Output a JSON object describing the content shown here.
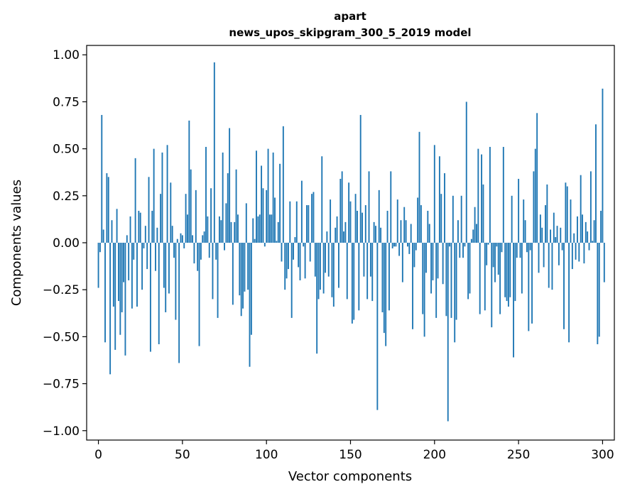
{
  "chart_data": {
    "type": "bar",
    "title": "apart",
    "subtitle": "news_upos_skipgram_300_5_2019 model",
    "xlabel": "Vector components",
    "ylabel": "Components values",
    "xlim": [
      -7,
      307
    ],
    "ylim": [
      -1.05,
      1.05
    ],
    "xticks": [
      0,
      50,
      100,
      150,
      200,
      250,
      300
    ],
    "yticks": [
      1.0,
      0.75,
      0.5,
      0.25,
      0.0,
      -0.25,
      -0.5,
      -0.75,
      -1.0
    ],
    "ytick_labels": [
      "1.00",
      "0.75",
      "0.50",
      "0.25",
      "0.00",
      "−0.25",
      "−0.50",
      "−0.75",
      "−1.00"
    ],
    "grid": false,
    "color": "#1f77b4",
    "values": [
      -0.24,
      -0.05,
      0.68,
      0.07,
      -0.53,
      0.37,
      0.35,
      -0.7,
      0.12,
      -0.34,
      -0.57,
      0.18,
      -0.31,
      -0.49,
      -0.37,
      -0.21,
      -0.6,
      0.04,
      -0.2,
      0.14,
      -0.35,
      -0.09,
      0.45,
      -0.34,
      0.17,
      0.16,
      -0.25,
      -0.03,
      0.09,
      -0.14,
      0.35,
      -0.58,
      0.17,
      0.5,
      -0.15,
      0.08,
      -0.54,
      0.26,
      0.48,
      -0.24,
      -0.37,
      0.52,
      -0.27,
      0.32,
      0.09,
      -0.08,
      -0.41,
      0.02,
      -0.64,
      0.05,
      0.04,
      -0.03,
      0.26,
      0.15,
      0.65,
      0.39,
      0.04,
      -0.11,
      0.28,
      -0.15,
      -0.55,
      -0.09,
      0.04,
      0.06,
      0.51,
      0.14,
      -0.08,
      0.29,
      -0.3,
      0.96,
      -0.09,
      -0.4,
      0.14,
      0.12,
      0.48,
      -0.04,
      0.21,
      0.37,
      0.61,
      0.11,
      -0.33,
      0.11,
      0.39,
      0.15,
      -0.28,
      -0.39,
      -0.35,
      -0.26,
      0.21,
      -0.25,
      -0.66,
      -0.49,
      0.13,
      0.02,
      0.49,
      0.14,
      0.15,
      0.41,
      0.29,
      -0.02,
      0.28,
      0.5,
      0.15,
      0.15,
      0.48,
      0.24,
      0.01,
      0.11,
      0.42,
      -0.1,
      0.62,
      -0.25,
      -0.19,
      -0.14,
      0.22,
      -0.4,
      -0.09,
      0.03,
      0.22,
      -0.13,
      -0.2,
      0.33,
      -0.02,
      -0.19,
      0.2,
      0.2,
      -0.1,
      0.26,
      0.27,
      -0.18,
      -0.59,
      -0.3,
      -0.25,
      0.46,
      -0.27,
      -0.16,
      0.06,
      -0.18,
      0.23,
      -0.29,
      -0.34,
      0.08,
      0.14,
      -0.24,
      0.34,
      0.38,
      0.06,
      0.11,
      -0.3,
      0.32,
      0.22,
      -0.43,
      -0.41,
      0.26,
      0.17,
      -0.36,
      0.68,
      0.16,
      -0.18,
      0.2,
      -0.3,
      0.38,
      -0.18,
      -0.31,
      0.11,
      0.09,
      -0.89,
      0.28,
      0.08,
      -0.37,
      -0.48,
      -0.55,
      0.17,
      -0.36,
      0.38,
      -0.03,
      -0.02,
      -0.02,
      0.23,
      -0.07,
      0.12,
      -0.21,
      0.19,
      0.12,
      -0.02,
      -0.06,
      0.1,
      -0.46,
      -0.13,
      -0.04,
      0.24,
      0.59,
      0.2,
      -0.38,
      -0.5,
      -0.16,
      0.17,
      0.1,
      -0.27,
      -0.2,
      0.52,
      -0.4,
      -0.19,
      0.46,
      0.26,
      -0.22,
      0.37,
      -0.39,
      -0.95,
      -0.02,
      -0.4,
      0.25,
      -0.53,
      -0.41,
      0.12,
      -0.08,
      0.25,
      -0.08,
      -0.02,
      0.75,
      -0.3,
      -0.27,
      0.02,
      0.07,
      0.19,
      0.1,
      0.5,
      -0.38,
      0.47,
      0.31,
      -0.36,
      -0.12,
      -0.01,
      0.51,
      -0.45,
      -0.13,
      -0.21,
      -0.02,
      -0.17,
      -0.38,
      -0.05,
      0.51,
      -0.29,
      -0.31,
      -0.34,
      -0.29,
      0.25,
      -0.61,
      -0.31,
      -0.08,
      0.34,
      -0.08,
      -0.27,
      0.23,
      0.12,
      -0.05,
      -0.47,
      -0.04,
      -0.43,
      0.38,
      0.5,
      0.69,
      -0.16,
      0.15,
      0.08,
      -0.13,
      0.2,
      0.31,
      -0.24,
      0.07,
      -0.25,
      0.16,
      0.03,
      0.09,
      -0.12,
      0.08,
      -0.04,
      -0.46,
      0.32,
      0.3,
      -0.53,
      0.23,
      -0.14,
      0.05,
      -0.09,
      0.14,
      -0.1,
      0.36,
      0.15,
      -0.11,
      0.11,
      0.06,
      -0.04,
      0.38,
      0.01,
      0.12,
      0.63,
      -0.54,
      -0.5,
      0.17,
      0.82,
      -0.21
    ]
  }
}
